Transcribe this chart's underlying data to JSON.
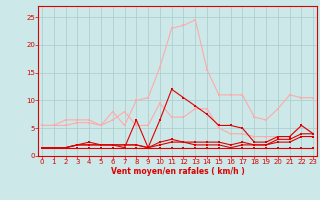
{
  "x": [
    0,
    1,
    2,
    3,
    4,
    5,
    6,
    7,
    8,
    9,
    10,
    11,
    12,
    13,
    14,
    15,
    16,
    17,
    18,
    19,
    20,
    21,
    22,
    23
  ],
  "line1_light": [
    5.5,
    5.5,
    6.5,
    6.5,
    6.5,
    5.5,
    8.0,
    5.5,
    10.0,
    10.5,
    16.0,
    23.0,
    23.5,
    24.5,
    15.5,
    11.0,
    11.0,
    11.0,
    7.0,
    6.5,
    8.5,
    11.0,
    10.5,
    10.5
  ],
  "line2_light": [
    5.5,
    5.5,
    5.5,
    6.0,
    6.0,
    5.5,
    6.5,
    8.0,
    5.5,
    5.5,
    9.5,
    7.0,
    7.0,
    8.5,
    8.5,
    5.0,
    4.0,
    4.0,
    3.5,
    3.5,
    3.5,
    3.5,
    5.5,
    4.0
  ],
  "line3_dark": [
    1.5,
    1.5,
    1.5,
    2.0,
    2.5,
    2.0,
    2.0,
    1.5,
    6.5,
    1.5,
    6.5,
    12.0,
    10.5,
    9.0,
    7.5,
    5.5,
    5.5,
    5.0,
    2.5,
    2.5,
    3.5,
    3.5,
    5.5,
    4.0
  ],
  "line4_dark": [
    1.5,
    1.5,
    1.5,
    2.0,
    2.0,
    2.0,
    2.0,
    2.0,
    2.0,
    1.5,
    2.5,
    3.0,
    2.5,
    2.5,
    2.5,
    2.5,
    2.0,
    2.5,
    2.0,
    2.0,
    3.0,
    3.0,
    4.0,
    4.0
  ],
  "line5_dark": [
    1.5,
    1.5,
    1.5,
    2.0,
    2.0,
    2.0,
    2.0,
    2.0,
    2.0,
    1.5,
    2.0,
    2.5,
    2.5,
    2.0,
    2.0,
    2.0,
    1.5,
    2.0,
    2.0,
    2.0,
    2.5,
    2.5,
    3.5,
    3.5
  ],
  "line6_dark": [
    1.5,
    1.5,
    1.5,
    1.5,
    1.5,
    1.5,
    1.5,
    1.5,
    1.5,
    1.5,
    1.5,
    1.5,
    1.5,
    1.5,
    1.5,
    1.5,
    1.5,
    1.5,
    1.5,
    1.5,
    1.5,
    1.5,
    1.5,
    1.5
  ],
  "color_light": "#ffaaaa",
  "color_dark": "#dd0000",
  "bg_color": "#cce8e8",
  "grid_color": "#aacccc",
  "xlabel": "Vent moyen/en rafales ( km/h )",
  "ylim": [
    0,
    27
  ],
  "xlim": [
    -0.3,
    23.3
  ],
  "yticks": [
    0,
    5,
    10,
    15,
    20,
    25
  ],
  "xticks": [
    0,
    1,
    2,
    3,
    4,
    5,
    6,
    7,
    8,
    9,
    10,
    11,
    12,
    13,
    14,
    15,
    16,
    17,
    18,
    19,
    20,
    21,
    22,
    23
  ],
  "marker_size": 2.0,
  "line_width": 0.8
}
